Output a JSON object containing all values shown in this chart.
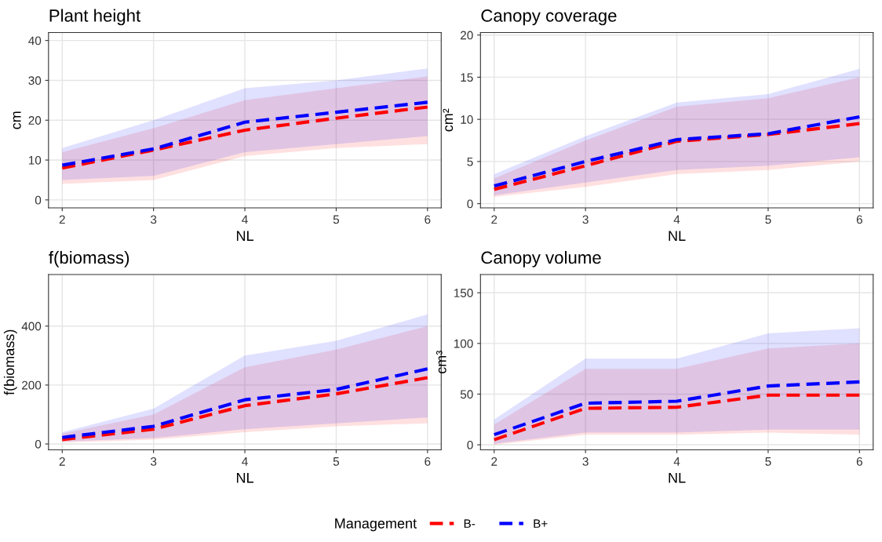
{
  "chart_data": [
    {
      "type": "line",
      "title": "Plant height",
      "xlabel": "NL",
      "ylabel": "cm",
      "x": [
        2,
        3,
        4,
        5,
        6
      ],
      "xlim": [
        1.85,
        6.15
      ],
      "xticks": [
        2,
        3,
        4,
        5,
        6
      ],
      "ylim": [
        -2,
        42
      ],
      "yticks": [
        0,
        10,
        20,
        30,
        40
      ],
      "grid": true,
      "line_style": "dashed",
      "legend": "bottom",
      "legend_title": "Management",
      "series": [
        {
          "name": "B-",
          "color": "#ff0000",
          "values": [
            8,
            12.5,
            17.5,
            20.5,
            23.3
          ],
          "lower": [
            4,
            5,
            11,
            13,
            14
          ],
          "upper": [
            12,
            18,
            25,
            28,
            31
          ]
        },
        {
          "name": "B+",
          "color": "#0000ff",
          "values": [
            8.7,
            12.8,
            19.5,
            22,
            24.5
          ],
          "lower": [
            5,
            6,
            12,
            14,
            16
          ],
          "upper": [
            13,
            20,
            28,
            30,
            33
          ]
        }
      ]
    },
    {
      "type": "line",
      "title": "Canopy coverage",
      "xlabel": "NL",
      "ylabel": "cm²",
      "x": [
        2,
        3,
        4,
        5,
        6
      ],
      "xlim": [
        1.85,
        6.15
      ],
      "xticks": [
        2,
        3,
        4,
        5,
        6
      ],
      "ylim": [
        -0.5,
        20.3
      ],
      "yticks": [
        0,
        5,
        10,
        15,
        20
      ],
      "grid": true,
      "line_style": "dashed",
      "series": [
        {
          "color": "#ff0000",
          "values": [
            1.7,
            4.5,
            7.4,
            8.2,
            9.5
          ],
          "lower": [
            0.8,
            2,
            3.5,
            4,
            5
          ],
          "upper": [
            3,
            7.5,
            11.5,
            12.5,
            15
          ]
        },
        {
          "color": "#0000ff",
          "values": [
            2.1,
            5,
            7.6,
            8.3,
            10.3
          ],
          "lower": [
            1,
            2.5,
            4,
            4.5,
            5.5
          ],
          "upper": [
            3.5,
            8,
            12,
            13,
            16
          ]
        }
      ]
    },
    {
      "type": "line",
      "title": "f(biomass)",
      "xlabel": "NL",
      "ylabel": "f(biomass)",
      "x": [
        2,
        3,
        4,
        5,
        6
      ],
      "xlim": [
        1.85,
        6.15
      ],
      "xticks": [
        2,
        3,
        4,
        5,
        6
      ],
      "ylim": [
        -20,
        575
      ],
      "yticks": [
        0,
        200,
        400
      ],
      "grid": true,
      "line_style": "dashed",
      "series": [
        {
          "color": "#ff0000",
          "values": [
            15,
            50,
            130,
            170,
            225
          ],
          "lower": [
            5,
            15,
            40,
            60,
            70
          ],
          "upper": [
            35,
            100,
            260,
            320,
            400
          ]
        },
        {
          "color": "#0000ff",
          "values": [
            22,
            60,
            150,
            185,
            255
          ],
          "lower": [
            8,
            20,
            50,
            70,
            90
          ],
          "upper": [
            40,
            120,
            300,
            350,
            440
          ]
        }
      ]
    },
    {
      "type": "line",
      "title": "Canopy volume",
      "xlabel": "NL",
      "ylabel": "cm³",
      "x": [
        2,
        3,
        4,
        5,
        6
      ],
      "xlim": [
        1.85,
        6.15
      ],
      "xticks": [
        2,
        3,
        4,
        5,
        6
      ],
      "ylim": [
        -5,
        168
      ],
      "yticks": [
        0,
        50,
        100,
        150
      ],
      "grid": true,
      "line_style": "dashed",
      "series": [
        {
          "color": "#ff0000",
          "values": [
            5,
            36,
            37,
            49,
            49
          ],
          "lower": [
            0,
            10,
            10,
            12,
            10
          ],
          "upper": [
            20,
            75,
            75,
            95,
            100
          ]
        },
        {
          "color": "#0000ff",
          "values": [
            10,
            41,
            43,
            58,
            62
          ],
          "lower": [
            1,
            12,
            12,
            15,
            15
          ],
          "upper": [
            25,
            85,
            85,
            110,
            115
          ]
        }
      ]
    }
  ]
}
